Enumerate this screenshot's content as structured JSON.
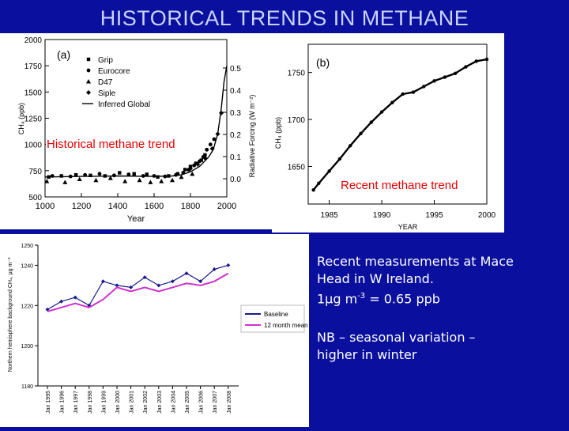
{
  "slide": {
    "title": "HISTORICAL TRENDS IN METHANE",
    "overlay_labels": {
      "historical": "Historical methane trend",
      "recent": "Recent methane trend"
    },
    "notes": {
      "line1": "Recent measurements at Mace",
      "line2": "Head in W Ireland.",
      "line3_prefix": "1μg m",
      "line3_sup": "-3",
      "line3_suffix": " = 0.65 ppb",
      "nb_line1": "NB – seasonal variation –",
      "nb_line2": "higher in winter"
    },
    "colors": {
      "background": "#0a0f9e",
      "title": "#c8d4ff",
      "overlay_text": "#e60000",
      "notes": "#ffffff",
      "mace_series": "#1a1a8c",
      "mace_mean": "#cc33cc"
    }
  },
  "chart_data": [
    {
      "type": "scatter",
      "panel_label": "(a)",
      "xlabel": "Year",
      "ylabel": "CH₄ (ppb)",
      "ylabel_right": "Radiative Forcing (W m⁻²)",
      "xlim": [
        1000,
        2000
      ],
      "ylim": [
        500,
        2000
      ],
      "x_ticks": [
        1000,
        1200,
        1400,
        1600,
        1800,
        2000
      ],
      "y_ticks": [
        500,
        750,
        1000,
        1250,
        1500,
        1750,
        2000
      ],
      "y2_ticks": [
        "0.0",
        "0.1",
        "0.2",
        "0.3",
        "0.4",
        "0.5"
      ],
      "legend": [
        "Grip",
        "Eurocore",
        "D47",
        "Siple",
        "Inferred Global"
      ],
      "series": [
        {
          "name": "Grip",
          "x": [
            1020,
            1090,
            1170,
            1250,
            1330,
            1410,
            1490,
            1560,
            1620,
            1680,
            1730,
            1770,
            1800,
            1830,
            1860,
            1880
          ],
          "y": [
            690,
            700,
            710,
            705,
            700,
            730,
            720,
            715,
            690,
            700,
            720,
            760,
            790,
            820,
            850,
            900
          ]
        },
        {
          "name": "Eurocore",
          "x": [
            1040,
            1140,
            1220,
            1300,
            1380,
            1460,
            1540,
            1600,
            1660,
            1720,
            1760,
            1790,
            1820,
            1850,
            1870,
            1890,
            1910,
            1930
          ],
          "y": [
            700,
            695,
            710,
            720,
            705,
            715,
            700,
            700,
            695,
            710,
            730,
            760,
            800,
            840,
            880,
            950,
            1000,
            1050
          ]
        },
        {
          "name": "D47",
          "x": [
            1010,
            1110,
            1190,
            1280,
            1360,
            1440,
            1520,
            1580,
            1640,
            1700,
            1750,
            1810
          ],
          "y": [
            650,
            640,
            670,
            660,
            680,
            650,
            660,
            640,
            650,
            660,
            690,
            720
          ]
        },
        {
          "name": "Siple",
          "x": [
            1800,
            1840,
            1880,
            1920,
            1950,
            1970
          ],
          "y": [
            770,
            810,
            870,
            960,
            1100,
            1300
          ]
        },
        {
          "name": "Inferred Global",
          "x": [
            1000,
            1200,
            1400,
            1600,
            1700,
            1750,
            1800,
            1850,
            1900,
            1925,
            1950,
            1970,
            1985,
            2000
          ],
          "y": [
            690,
            695,
            700,
            695,
            700,
            710,
            740,
            790,
            880,
            950,
            1100,
            1350,
            1600,
            1750
          ]
        }
      ]
    },
    {
      "type": "line",
      "panel_label": "(b)",
      "xlabel": "YEAR",
      "ylabel": "CH₄ (ppb)",
      "xlim": [
        1983,
        2000
      ],
      "ylim": [
        1610,
        1780
      ],
      "x_ticks": [
        1985,
        1990,
        1995,
        2000
      ],
      "y_ticks": [
        1650,
        1700,
        1750
      ],
      "series": [
        {
          "name": "",
          "x": [
            1983.5,
            1984,
            1985,
            1986,
            1987,
            1988,
            1989,
            1990,
            1991,
            1992,
            1993,
            1994,
            1995,
            1996,
            1997,
            1998,
            1999,
            2000
          ],
          "y": [
            1625,
            1632,
            1645,
            1658,
            1672,
            1685,
            1697,
            1708,
            1718,
            1727,
            1729,
            1735,
            1741,
            1745,
            1749,
            1756,
            1762,
            1764
          ]
        }
      ]
    },
    {
      "type": "line",
      "xlabel": "",
      "ylabel": "Northern hemisphere background CH₄, μg m⁻³",
      "ylim": [
        1180,
        1250
      ],
      "y_ticks": [
        1180,
        1200,
        1220,
        1240,
        1250
      ],
      "categories": [
        "Jan 1995",
        "Jan 1996",
        "Jan 1997",
        "Jan 1998",
        "Jan 1999",
        "Jan 2000",
        "Jan 2001",
        "Jan 2002",
        "Jan 2003",
        "Jan 2004",
        "Jan 2005",
        "Jan 2006",
        "Jan 2007",
        "Jan 2008"
      ],
      "legend": [
        "Baseline",
        "12 month mean"
      ],
      "series": [
        {
          "name": "Baseline",
          "values": [
            1218,
            1222,
            1224,
            1220,
            1232,
            1230,
            1229,
            1234,
            1230,
            1232,
            1236,
            1232,
            1238,
            1240
          ]
        },
        {
          "name": "12 month mean",
          "values": [
            1217,
            1219,
            1221,
            1219,
            1223,
            1229,
            1227,
            1229,
            1227,
            1229,
            1231,
            1230,
            1232,
            1236
          ]
        }
      ]
    }
  ]
}
